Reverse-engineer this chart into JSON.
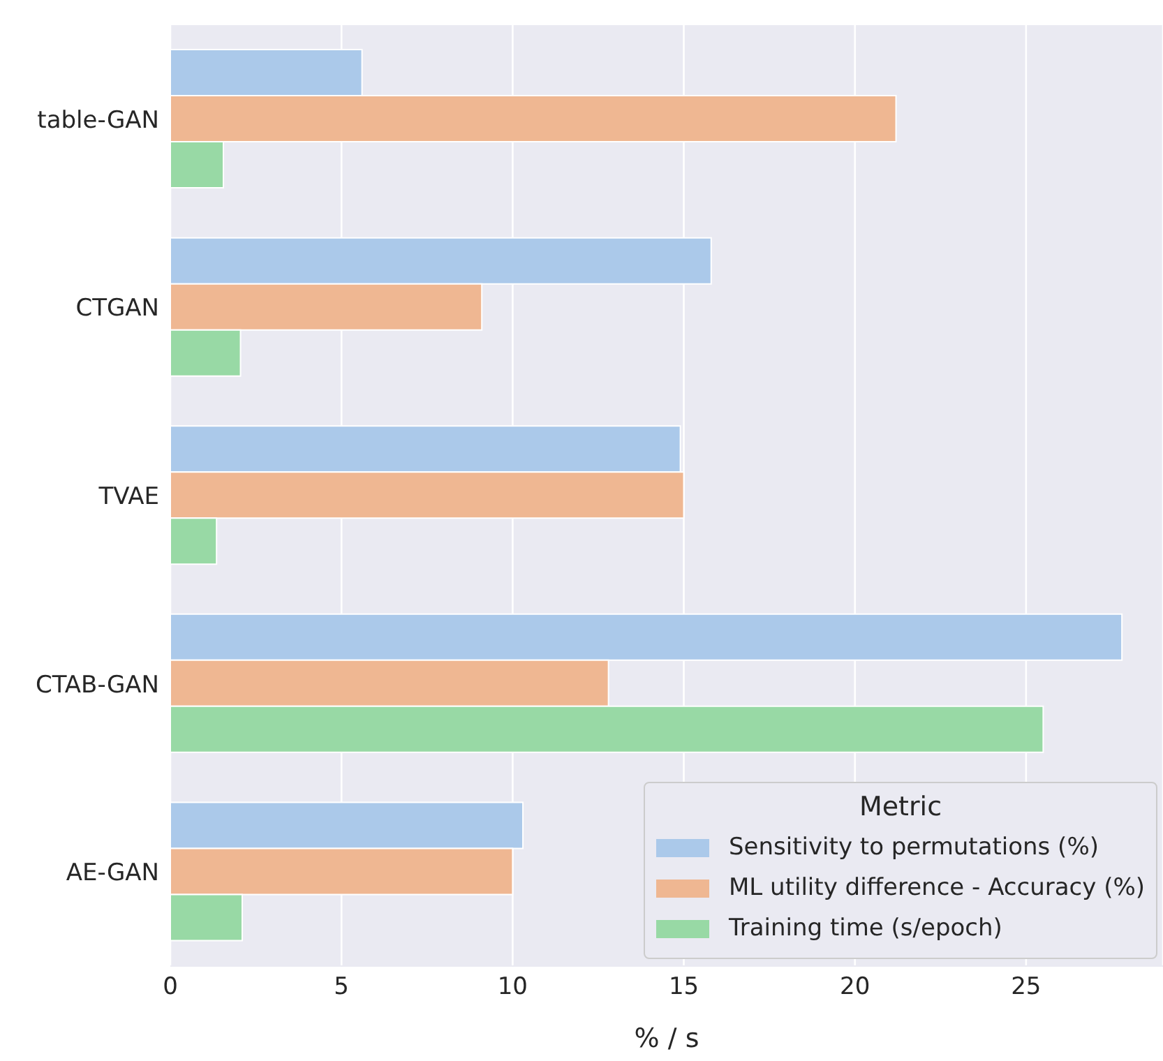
{
  "chart_data": {
    "type": "bar",
    "orientation": "horizontal",
    "categories": [
      "table-GAN",
      "CTGAN",
      "TVAE",
      "CTAB-GAN",
      "AE-GAN"
    ],
    "series": [
      {
        "name": "Sensitivity to permutations (%)",
        "color": "#abc9ea",
        "values": [
          5.6,
          15.8,
          14.9,
          27.8,
          10.3
        ]
      },
      {
        "name": "ML utility difference - Accuracy (%)",
        "color": "#efb792",
        "values": [
          21.2,
          9.1,
          15.0,
          12.8,
          10.0
        ]
      },
      {
        "name": "Training time (s/epoch)",
        "color": "#98d9a5",
        "values": [
          1.55,
          2.05,
          1.35,
          25.5,
          2.1
        ]
      }
    ],
    "xlabel": "% / s",
    "legend_title": "Metric",
    "legend": "bottom right",
    "grid": "x",
    "xlim": [
      0,
      29
    ],
    "xticks": [
      0,
      5,
      10,
      15,
      20,
      25
    ]
  }
}
